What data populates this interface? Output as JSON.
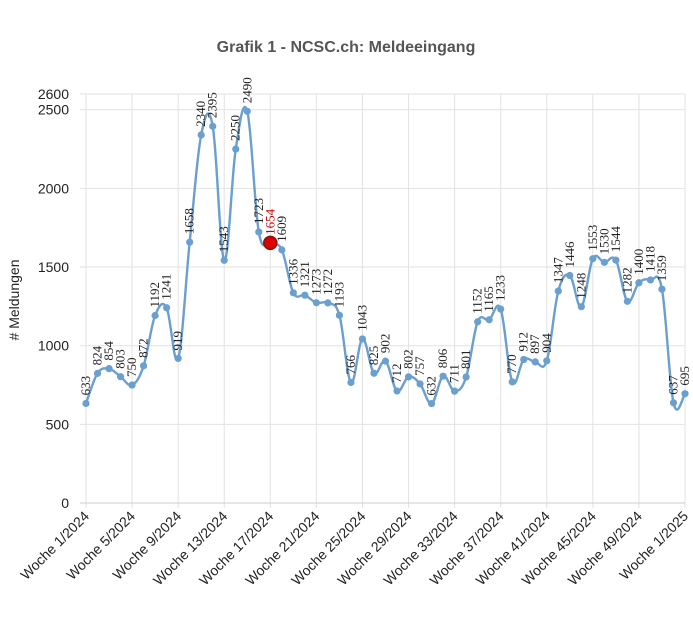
{
  "chart_data": {
    "type": "line",
    "title": "Grafik 1 - NCSC.ch: Meldeeingang",
    "xlabel": "",
    "ylabel": "# Meldungen",
    "ylim": [
      0,
      2600
    ],
    "yticks": [
      0,
      500,
      1000,
      1500,
      2000,
      2500,
      2600
    ],
    "x_tick_labels": [
      "Woche 1/2024",
      "Woche 5/2024",
      "Woche 9/2024",
      "Woche 13/2024",
      "Woche 17/2024",
      "Woche 21/2024",
      "Woche 25/2024",
      "Woche 29/2024",
      "Woche 33/2024",
      "Woche 37/2024",
      "Woche 41/2024",
      "Woche 45/2024",
      "Woche 49/2024",
      "Woche 1/2025"
    ],
    "grid": true,
    "line_color": "#6a9fce",
    "highlight_color": "#dd0000",
    "highlight_index": 16,
    "series": [
      {
        "values": [
          633,
          824,
          854,
          803,
          750,
          872,
          1192,
          1241,
          919,
          1658,
          2340,
          2395,
          1543,
          2250,
          2490,
          1723,
          1654,
          1609,
          1336,
          1321,
          1273,
          1272,
          1193,
          766,
          1043,
          825,
          902,
          712,
          802,
          757,
          632,
          806,
          711,
          801,
          1152,
          1165,
          1233,
          770,
          912,
          897,
          904,
          1347,
          1446,
          1248,
          1553,
          1530,
          1544,
          1282,
          1400,
          1418,
          1359,
          637,
          695
        ]
      }
    ]
  }
}
